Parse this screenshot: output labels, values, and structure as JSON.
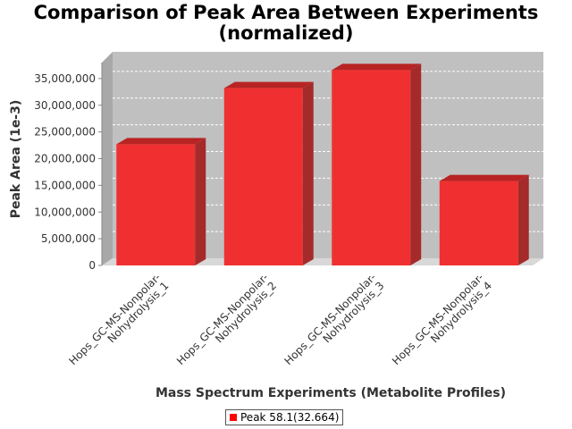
{
  "chart_data": {
    "type": "bar",
    "title": "Comparison of Peak Area Between Experiments",
    "subtitle": "(normalized)",
    "xlabel": "Mass Spectrum Experiments (Metabolite Profiles)",
    "ylabel": "Peak Area (1e-3)",
    "categories": [
      [
        "Hops_GC-MS-Nonpolar-",
        "Nohydrolysis_1"
      ],
      [
        "Hops_GC-MS-Nonpolar-",
        "Nohydrolysis_2"
      ],
      [
        "Hops_GC-MS-Nonpolar-",
        "Nohydrolysis_3"
      ],
      [
        "Hops_GC-MS-Nonpolar-",
        "Nohydrolysis_4"
      ]
    ],
    "series": [
      {
        "name": "Peak 58.1(32.664)",
        "values": [
          22700000,
          33200000,
          36600000,
          15800000
        ],
        "color": "#ff0000"
      }
    ],
    "ylim": [
      0,
      40000000
    ],
    "yticks": [
      "0",
      "5,000,000",
      "10,000,000",
      "15,000,000",
      "20,000,000",
      "25,000,000",
      "30,000,000",
      "35,000,000"
    ],
    "ytick_values": [
      0,
      5000000,
      10000000,
      15000000,
      20000000,
      25000000,
      30000000,
      35000000
    ],
    "grid": true,
    "legend": "bottom-center",
    "style": "3d-bar",
    "plot_background": "#c0c0c0"
  }
}
